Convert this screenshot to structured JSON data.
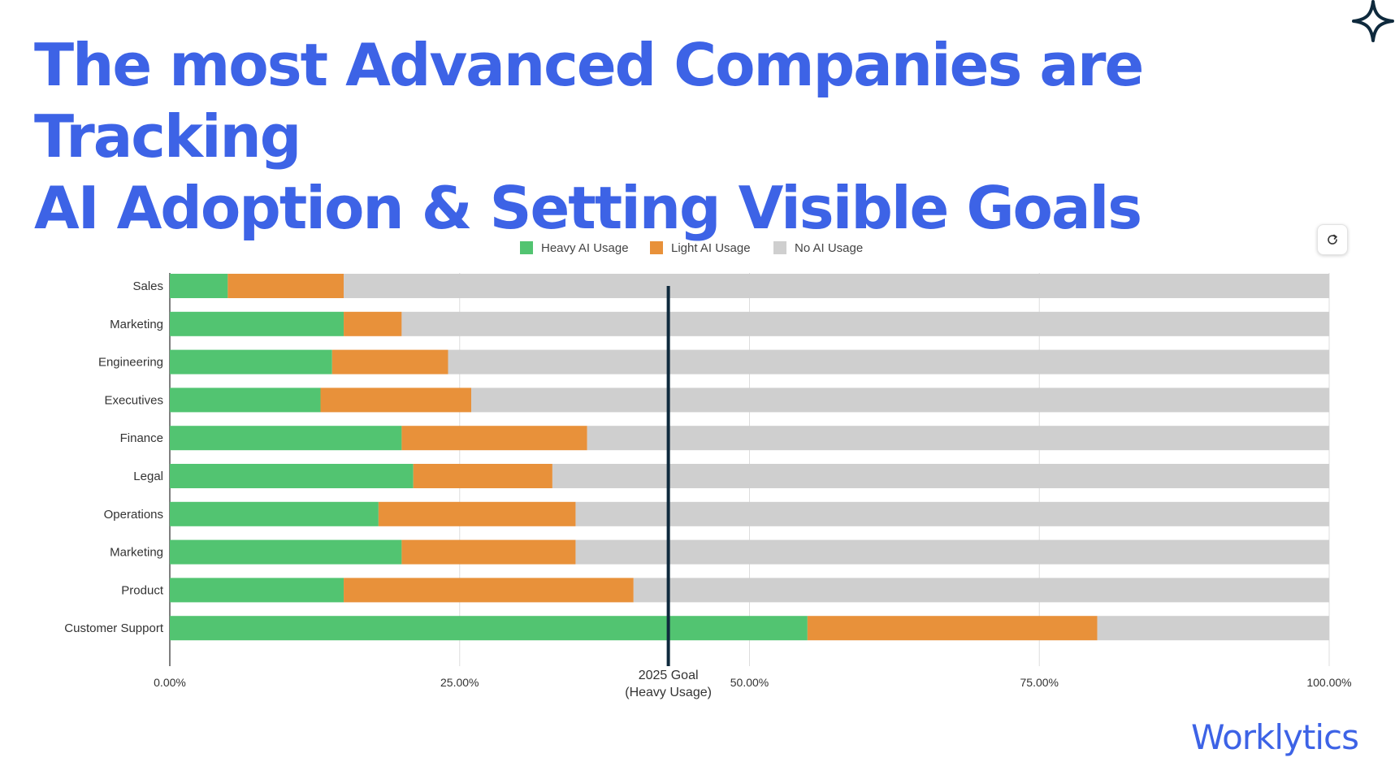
{
  "title_line1": "The most Advanced Companies are Tracking",
  "title_line2": "AI Adoption & Setting Visible Goals",
  "logo_text": "Worklytics",
  "icons": {
    "sparkle": "sparkle-icon",
    "refresh": "refresh-icon"
  },
  "colors": {
    "title": "#3d63e6",
    "heavy": "#52c471",
    "light": "#e8913a",
    "none": "#cfcfcf",
    "goal_line": "#0f2a3d",
    "logo": "#3d63e6"
  },
  "chart_data": {
    "type": "bar",
    "orientation": "horizontal",
    "stacked": true,
    "categories": [
      "Sales",
      "Marketing",
      "Engineering",
      "Executives",
      "Finance",
      "Legal",
      "Operations",
      "Marketing",
      "Product",
      "Customer Support"
    ],
    "series": [
      {
        "name": "Heavy AI Usage",
        "values": [
          5,
          15,
          14,
          13,
          20,
          21,
          18,
          20,
          15,
          55
        ]
      },
      {
        "name": "Light AI Usage",
        "values": [
          10,
          5,
          10,
          13,
          16,
          12,
          17,
          15,
          25,
          25
        ]
      },
      {
        "name": "No AI Usage",
        "values": [
          85,
          80,
          76,
          74,
          64,
          67,
          65,
          65,
          60,
          20
        ]
      }
    ],
    "xlim": [
      0,
      100
    ],
    "xticks": [
      "0.00%",
      "25.00%",
      "50.00%",
      "75.00%",
      "100.00%"
    ],
    "legend_position": "top-center",
    "goal": {
      "value": 43,
      "label_line1": "2025 Goal",
      "label_line2": "(Heavy Usage)"
    },
    "grid": true
  }
}
